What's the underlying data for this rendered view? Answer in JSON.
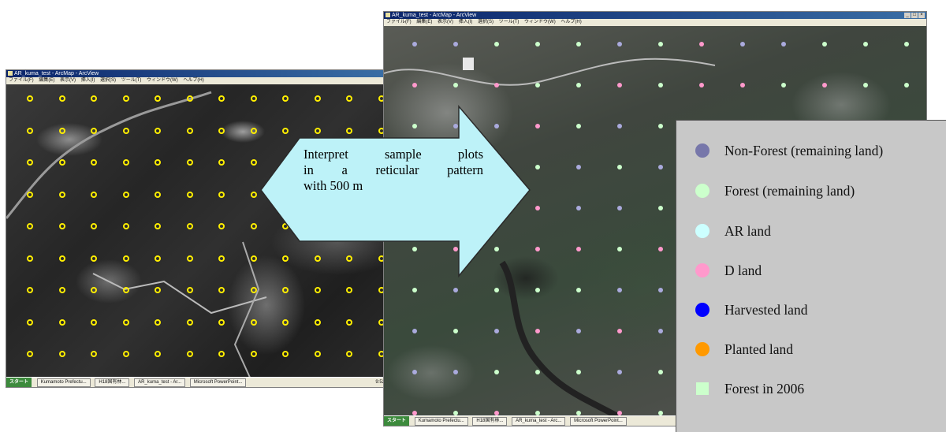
{
  "left_window": {
    "title": "AR_kuma_test - ArcMap - ArcView",
    "menu": [
      "ファイル(F)",
      "編集(E)",
      "表示(V)",
      "挿入(I)",
      "選択(S)",
      "ツール(T)",
      "ウィンドウ(W)",
      "ヘルプ(H)"
    ],
    "taskbar": {
      "start": "スタート",
      "tasks": [
        "Kumamoto Prefectu...",
        "H18国有林...",
        "AR_kuma_test - Ar...",
        "Microsoft PowerPoint..."
      ],
      "tray": "9:52"
    }
  },
  "right_window": {
    "title": "AR_kuma_test - ArcMap - ArcView",
    "menu": [
      "ファイル(F)",
      "編集(E)",
      "表示(V)",
      "挿入(I)",
      "選択(S)",
      "ツール(T)",
      "ウィンドウ(W)",
      "ヘルプ(H)"
    ],
    "taskbar": {
      "start": "スタート",
      "tasks": [
        "Kumamoto Prefectu...",
        "H18国有林...",
        "AR_kuma_test - Arc...",
        "Microsoft PowerPoint..."
      ]
    }
  },
  "arrow": {
    "lines": [
      "Interpret sample plots",
      "in a reticular pattern",
      "with 500 m"
    ],
    "fill": "#bdf2f8",
    "stroke": "#2a2a2a"
  },
  "legend": {
    "items": [
      {
        "label": "Non-Forest (remaining land)",
        "color": "#7777aa",
        "shape": "circle"
      },
      {
        "label": "Forest (remaining land)",
        "color": "#ccffcc",
        "shape": "circle"
      },
      {
        "label": "AR land",
        "color": "#ccffff",
        "shape": "circle"
      },
      {
        "label": "D land",
        "color": "#ff99cc",
        "shape": "circle"
      },
      {
        "label": "Harvested land",
        "color": "#0000ff",
        "shape": "circle"
      },
      {
        "label": "Planted land",
        "color": "#ff9900",
        "shape": "circle"
      },
      {
        "label": "Forest in 2006",
        "color": "#ccffcc",
        "shape": "square"
      }
    ],
    "background": "#c8c8c8"
  },
  "plot_colors": {
    "yellow": "#ffee00",
    "non_forest": "#aaaadd",
    "forest": "#ccffcc",
    "d_land": "#ff99cc"
  }
}
